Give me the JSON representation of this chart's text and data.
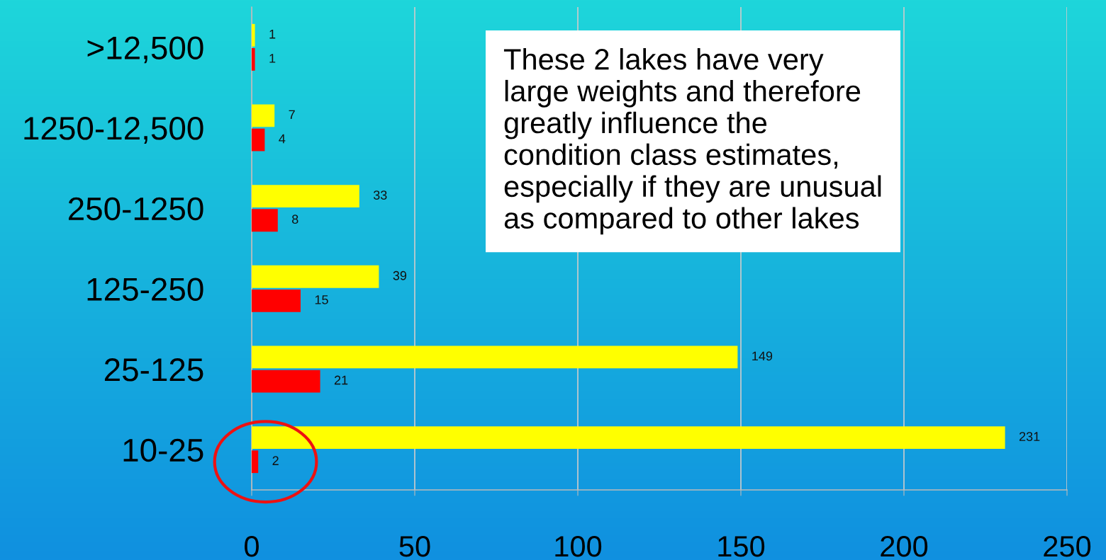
{
  "chart_data": {
    "type": "bar",
    "orientation": "horizontal",
    "categories": [
      ">12,500",
      "1250-12,500",
      "250-1250",
      "125-250",
      "25-125",
      "10-25"
    ],
    "series": [
      {
        "color": "#ffff00",
        "values": [
          1,
          7,
          33,
          39,
          149,
          231
        ]
      },
      {
        "color": "#ff0000",
        "values": [
          1,
          4,
          8,
          15,
          21,
          2
        ]
      }
    ],
    "xlim": [
      0,
      250
    ],
    "xticks": [
      0,
      50,
      100,
      150,
      200,
      250
    ],
    "grid": "x",
    "data_labels": true,
    "annotations": [
      "These 2 lakes have very\nlarge weights and therefore\ngreatly influence the\ncondition class estimates,\nespecially if they are unusual\nas compared to other lakes"
    ]
  }
}
